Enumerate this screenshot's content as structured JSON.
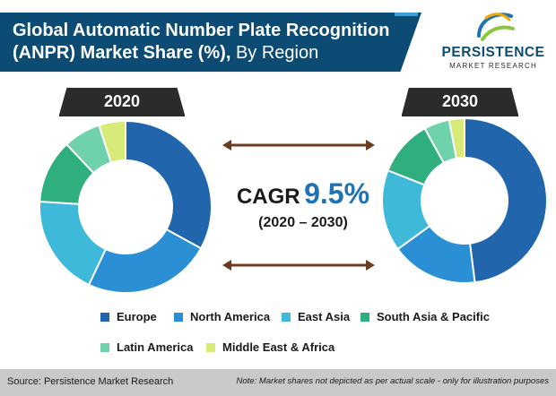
{
  "header": {
    "title_bold": "Global Automatic Number Plate Recognition (ANPR) Market Share (%),",
    "title_light": " By Region"
  },
  "logo": {
    "main": "PERSISTENCE",
    "sub": "MARKET RESEARCH"
  },
  "cagr": {
    "label": "CAGR",
    "value": "9.5%",
    "period": "(2020 – 2030)"
  },
  "legend": [
    {
      "label": "Europe",
      "color": "#2166ad"
    },
    {
      "label": "North America",
      "color": "#2a8fd4"
    },
    {
      "label": "East Asia",
      "color": "#3fb9da"
    },
    {
      "label": "South Asia & Pacific",
      "color": "#2fae7e"
    },
    {
      "label": "Latin America",
      "color": "#6fd2ac"
    },
    {
      "label": "Middle East & Africa",
      "color": "#d8eb79"
    }
  ],
  "chart_data": [
    {
      "type": "pie",
      "title": "2020",
      "categories": [
        "Europe",
        "North America",
        "East Asia",
        "South Asia & Pacific",
        "Latin America",
        "Middle East & Africa"
      ],
      "values": [
        33,
        24,
        19,
        12,
        7,
        5
      ]
    },
    {
      "type": "pie",
      "title": "2030",
      "categories": [
        "Europe",
        "North America",
        "East Asia",
        "South Asia & Pacific",
        "Latin America",
        "Middle East & Africa"
      ],
      "values": [
        48,
        17,
        16,
        11,
        5,
        3
      ]
    }
  ],
  "footer": {
    "source": "Source: Persistence Market Research",
    "note": "Note: Market shares not depicted as per actual scale - only for illustration purposes"
  }
}
